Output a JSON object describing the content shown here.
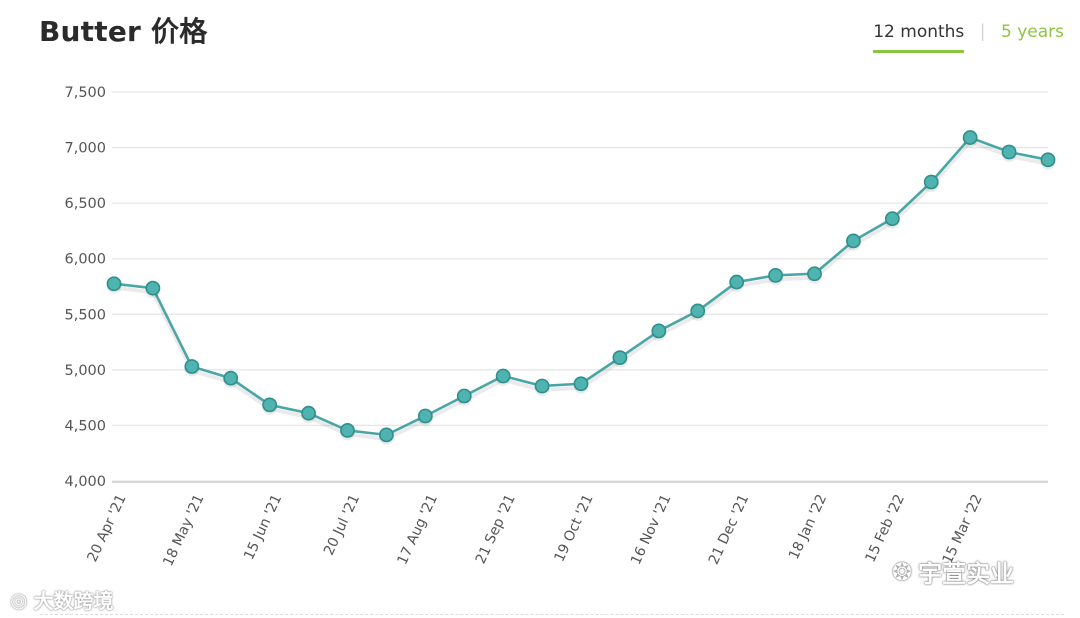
{
  "header": {
    "title": "Butter 价格",
    "tabs": [
      {
        "label": "12 months",
        "active": true
      },
      {
        "label": "5 years",
        "active": false
      }
    ]
  },
  "watermarks": {
    "left": "大数跨境",
    "right": "宇萱实业"
  },
  "colors": {
    "line": "#4aa6a6",
    "marker_fill": "#4fb3b0",
    "marker_stroke": "#2f8f8c",
    "grid": "#e6e6e6",
    "accent": "#8cc63f"
  },
  "chart_data": {
    "type": "line",
    "title": "Butter 价格",
    "xlabel": "",
    "ylabel": "",
    "ylim": [
      4000,
      7500
    ],
    "yticks": [
      "7,500",
      "7,000",
      "6,500",
      "6,000",
      "5,500",
      "5,000",
      "4,500",
      "4,000"
    ],
    "ytick_values": [
      7500,
      7000,
      6500,
      6000,
      5500,
      5000,
      4500,
      4000
    ],
    "xtick_labels": [
      "20 Apr '21",
      "18 May '21",
      "15 Jun '21",
      "20 Jul '21",
      "17 Aug '21",
      "21 Sep '21",
      "19 Oct '21",
      "16 Nov '21",
      "21 Dec '21",
      "18 Jan '22",
      "15 Feb '22",
      "15 Mar '22"
    ],
    "grid": true,
    "legend": "none",
    "series": [
      {
        "values": [
          5775,
          5735,
          5030,
          4925,
          4685,
          4610,
          4455,
          4415,
          4585,
          4765,
          4945,
          4855,
          4875,
          5110,
          5350,
          5530,
          5790,
          5850,
          5865,
          6160,
          6360,
          6690,
          7090,
          6960,
          6890
        ]
      }
    ]
  }
}
